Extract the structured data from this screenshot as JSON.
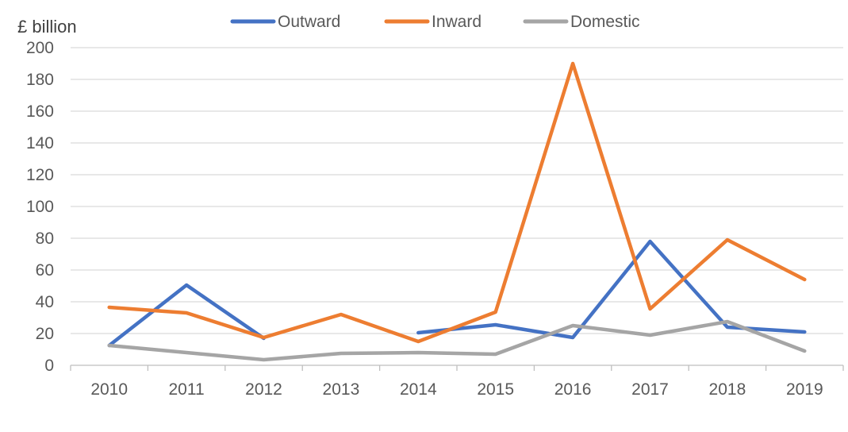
{
  "chart_data": {
    "type": "line",
    "title": "",
    "ylabel": "£ billion",
    "xlabel": "",
    "categories": [
      "2010",
      "2011",
      "2012",
      "2013",
      "2014",
      "2015",
      "2016",
      "2017",
      "2018",
      "2019"
    ],
    "ylim": [
      0,
      200
    ],
    "yticks": [
      0,
      20,
      40,
      60,
      80,
      100,
      120,
      140,
      160,
      180,
      200
    ],
    "grid": true,
    "legend_position": "top",
    "series": [
      {
        "name": "Outward",
        "color": "#4472c4",
        "values": [
          12.5,
          50.5,
          17,
          null,
          20.5,
          25.5,
          17.5,
          78,
          24,
          21
        ]
      },
      {
        "name": "Inward",
        "color": "#ed7d31",
        "values": [
          36.5,
          33,
          17.5,
          32,
          15,
          33.5,
          190,
          35.5,
          79,
          54
        ]
      },
      {
        "name": "Domestic",
        "color": "#a5a5a5",
        "values": [
          12.5,
          8,
          3.5,
          7.5,
          8,
          7,
          25,
          19,
          27.5,
          9
        ]
      }
    ]
  }
}
